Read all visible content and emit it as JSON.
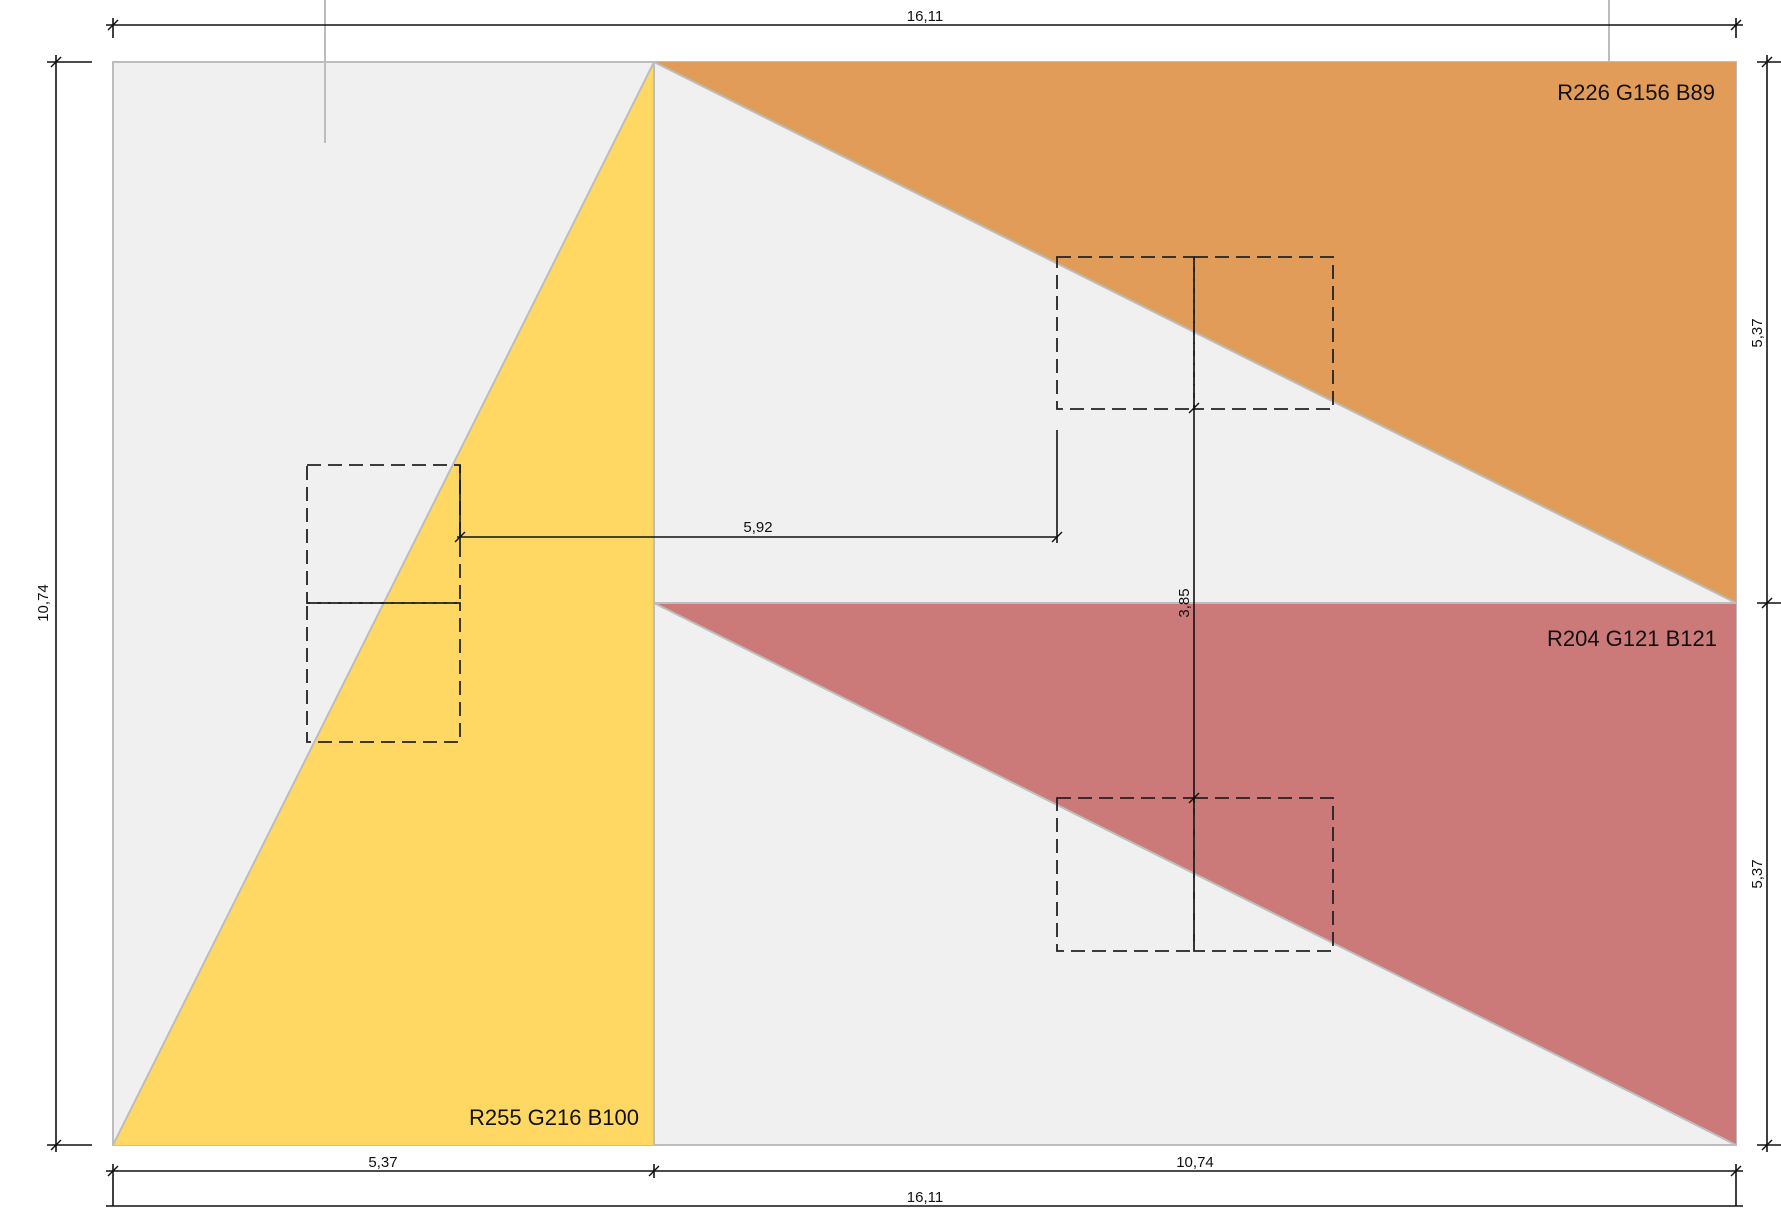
{
  "colors": {
    "background_panel": "#f0f0f0",
    "yellow": "#ffd864",
    "orange": "#e29c59",
    "red": "#cc7979",
    "edge": "#bdbdbd",
    "ink": "#111111"
  },
  "color_labels": {
    "orange": "R226 G156 B89",
    "red": "R204 G121 B121",
    "yellow": "R255 G216 B100"
  },
  "dimensions": {
    "top_total": "16,11",
    "bottom_total": "16,11",
    "bottom_left": "5,37",
    "bottom_right": "10,74",
    "left_height": "10,74",
    "right_upper": "5,37",
    "right_lower": "5,37",
    "inner_horizontal": "5,92",
    "inner_vertical": "3,85"
  }
}
